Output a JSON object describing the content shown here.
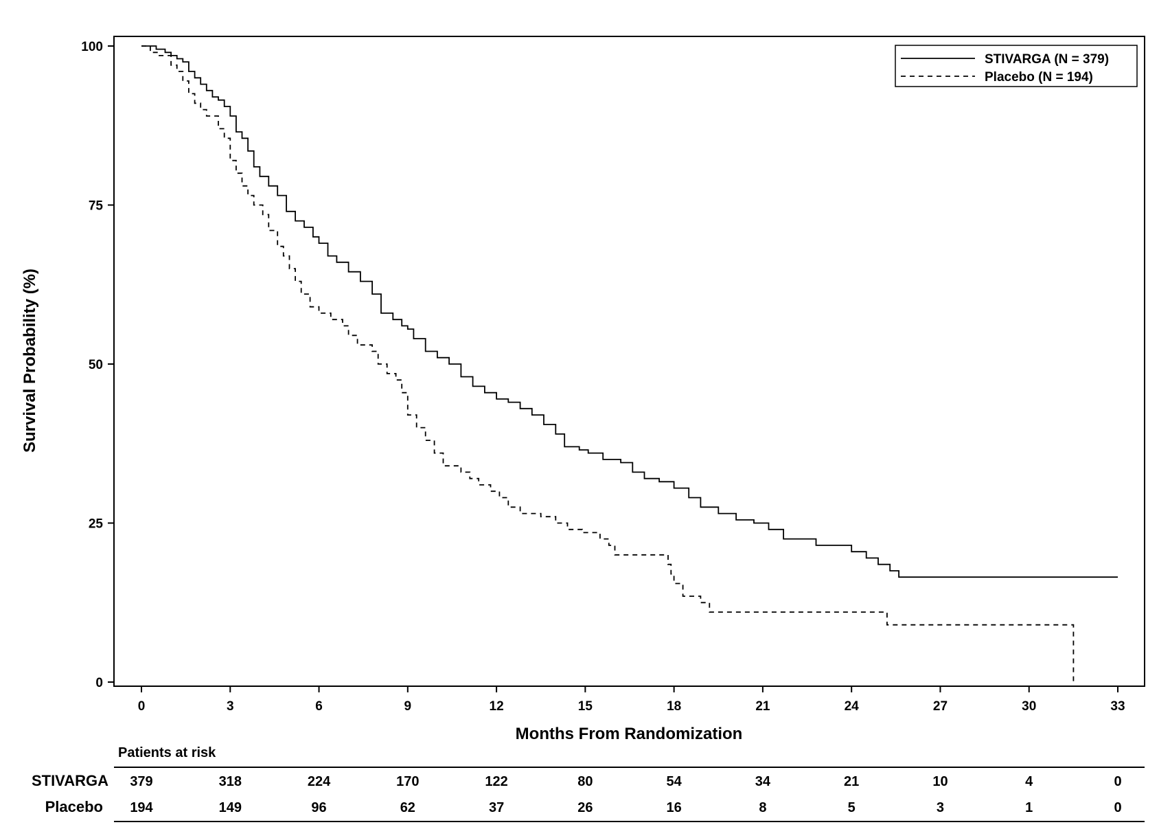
{
  "chart_data": {
    "type": "line",
    "title": "",
    "xlabel": "Months From Randomization",
    "ylabel": "Survival Probability (%)",
    "xlim": [
      0,
      33
    ],
    "ylim": [
      0,
      100
    ],
    "x_ticks": [
      "0",
      "3",
      "6",
      "9",
      "12",
      "15",
      "18",
      "21",
      "24",
      "27",
      "30",
      "33"
    ],
    "y_ticks": [
      "0",
      "25",
      "50",
      "75",
      "100"
    ],
    "grid": false,
    "legend_position": "top-right",
    "series": [
      {
        "name": "STIVARGA (N = 379)",
        "line_style": "solid",
        "color": "#000000",
        "points": [
          [
            0,
            100
          ],
          [
            0.4,
            100
          ],
          [
            0.5,
            99.5
          ],
          [
            0.8,
            99
          ],
          [
            1.0,
            98.5
          ],
          [
            1.2,
            98
          ],
          [
            1.4,
            97.5
          ],
          [
            1.6,
            96
          ],
          [
            1.8,
            95
          ],
          [
            2.0,
            94
          ],
          [
            2.2,
            93
          ],
          [
            2.4,
            92
          ],
          [
            2.6,
            91.5
          ],
          [
            2.8,
            90.5
          ],
          [
            3.0,
            89
          ],
          [
            3.2,
            86.5
          ],
          [
            3.4,
            85.5
          ],
          [
            3.6,
            83.5
          ],
          [
            3.8,
            81
          ],
          [
            4.0,
            79.5
          ],
          [
            4.3,
            78
          ],
          [
            4.6,
            76.5
          ],
          [
            4.9,
            74
          ],
          [
            5.2,
            72.5
          ],
          [
            5.5,
            71.5
          ],
          [
            5.8,
            70
          ],
          [
            6.0,
            69
          ],
          [
            6.3,
            67
          ],
          [
            6.6,
            66
          ],
          [
            7.0,
            64.5
          ],
          [
            7.4,
            63
          ],
          [
            7.8,
            61
          ],
          [
            8.1,
            58
          ],
          [
            8.5,
            57
          ],
          [
            8.8,
            56
          ],
          [
            9.0,
            55.5
          ],
          [
            9.2,
            54
          ],
          [
            9.6,
            52
          ],
          [
            10.0,
            51
          ],
          [
            10.4,
            50
          ],
          [
            10.8,
            48
          ],
          [
            11.2,
            46.5
          ],
          [
            11.6,
            45.5
          ],
          [
            12.0,
            44.5
          ],
          [
            12.4,
            44
          ],
          [
            12.8,
            43
          ],
          [
            13.2,
            42
          ],
          [
            13.6,
            40.5
          ],
          [
            14.0,
            39
          ],
          [
            14.3,
            37
          ],
          [
            14.8,
            36.5
          ],
          [
            15.1,
            36
          ],
          [
            15.6,
            35
          ],
          [
            16.2,
            34.5
          ],
          [
            16.6,
            33
          ],
          [
            17.0,
            32
          ],
          [
            17.5,
            31.5
          ],
          [
            18.0,
            30.5
          ],
          [
            18.5,
            29
          ],
          [
            18.9,
            27.5
          ],
          [
            19.5,
            26.5
          ],
          [
            20.1,
            25.5
          ],
          [
            20.7,
            25
          ],
          [
            21.2,
            24
          ],
          [
            21.7,
            22.5
          ],
          [
            22.8,
            21.5
          ],
          [
            24.0,
            20.5
          ],
          [
            24.5,
            19.5
          ],
          [
            24.9,
            18.5
          ],
          [
            25.3,
            17.5
          ],
          [
            25.6,
            16.5
          ],
          [
            33.0,
            16.5
          ]
        ]
      },
      {
        "name": "Placebo (N = 194)",
        "line_style": "dashed",
        "color": "#000000",
        "points": [
          [
            0,
            100
          ],
          [
            0.3,
            99
          ],
          [
            0.6,
            98.5
          ],
          [
            1.0,
            97
          ],
          [
            1.2,
            96
          ],
          [
            1.4,
            94.5
          ],
          [
            1.6,
            92.5
          ],
          [
            1.8,
            91
          ],
          [
            2.0,
            90
          ],
          [
            2.2,
            89
          ],
          [
            2.6,
            87
          ],
          [
            2.8,
            85.5
          ],
          [
            3.0,
            82
          ],
          [
            3.2,
            80
          ],
          [
            3.4,
            78
          ],
          [
            3.6,
            76.5
          ],
          [
            3.8,
            75
          ],
          [
            4.1,
            73.5
          ],
          [
            4.3,
            71
          ],
          [
            4.6,
            68.5
          ],
          [
            4.8,
            67
          ],
          [
            5.0,
            65
          ],
          [
            5.2,
            63
          ],
          [
            5.4,
            61
          ],
          [
            5.7,
            59
          ],
          [
            6.0,
            58
          ],
          [
            6.4,
            57
          ],
          [
            6.8,
            56
          ],
          [
            7.0,
            54.5
          ],
          [
            7.3,
            53
          ],
          [
            7.8,
            52
          ],
          [
            8.0,
            50
          ],
          [
            8.3,
            48.5
          ],
          [
            8.6,
            47.5
          ],
          [
            8.8,
            45.5
          ],
          [
            9.0,
            42
          ],
          [
            9.3,
            40
          ],
          [
            9.6,
            38
          ],
          [
            9.9,
            36
          ],
          [
            10.2,
            34
          ],
          [
            10.8,
            33
          ],
          [
            11.1,
            32
          ],
          [
            11.4,
            31
          ],
          [
            11.8,
            30
          ],
          [
            12.1,
            29
          ],
          [
            12.4,
            27.5
          ],
          [
            12.8,
            26.5
          ],
          [
            13.5,
            26
          ],
          [
            14.0,
            25
          ],
          [
            14.4,
            24
          ],
          [
            14.9,
            23.5
          ],
          [
            15.5,
            22.5
          ],
          [
            15.8,
            21.5
          ],
          [
            16.0,
            20
          ],
          [
            17.8,
            18.5
          ],
          [
            17.9,
            17
          ],
          [
            18.0,
            15.5
          ],
          [
            18.3,
            13.5
          ],
          [
            18.9,
            12.5
          ],
          [
            19.2,
            11
          ],
          [
            25.2,
            9
          ],
          [
            31.5,
            9
          ],
          [
            31.5,
            0
          ]
        ]
      }
    ],
    "risk_table": {
      "title": "Patients at risk",
      "x": [
        0,
        3,
        6,
        9,
        12,
        15,
        18,
        21,
        24,
        27,
        30,
        33
      ],
      "rows": [
        {
          "label": "STIVARGA",
          "values": [
            "379",
            "318",
            "224",
            "170",
            "122",
            "80",
            "54",
            "34",
            "21",
            "10",
            "4",
            "0"
          ]
        },
        {
          "label": "Placebo",
          "values": [
            "194",
            "149",
            "96",
            "62",
            "37",
            "26",
            "16",
            "8",
            "5",
            "3",
            "1",
            "0"
          ]
        }
      ]
    }
  }
}
